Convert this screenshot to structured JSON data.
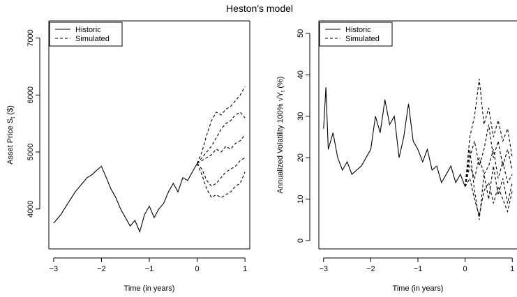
{
  "figure": {
    "title": "Heston's model"
  },
  "chart_data": [
    {
      "type": "line",
      "title": "",
      "xlabel": "Time (in years)",
      "ylabel": "Asset Price S_t ($)",
      "ylabel_main": "Asset Price S",
      "ylabel_sub": "t",
      "ylabel_tail": " ($)",
      "xlim": [
        -3.1,
        1.1
      ],
      "ylim": [
        3300,
        7300
      ],
      "xticks": [
        -3,
        -2,
        -1,
        0,
        1
      ],
      "xtick_labels": [
        "−3",
        "−2",
        "−1",
        "0",
        "1"
      ],
      "yticks": [
        4000,
        5000,
        6000,
        7000
      ],
      "ytick_labels": [
        "4000",
        "5000",
        "6000",
        "7000"
      ],
      "grid": false,
      "legend": {
        "position": "top-left",
        "entries": [
          {
            "label": "Historic",
            "style": "solid"
          },
          {
            "label": "Simulated",
            "style": "dashed"
          }
        ]
      },
      "series": [
        {
          "name": "Historic",
          "style": "solid",
          "x": [
            -3.0,
            -2.85,
            -2.7,
            -2.55,
            -2.4,
            -2.3,
            -2.2,
            -2.1,
            -2.0,
            -1.9,
            -1.8,
            -1.7,
            -1.6,
            -1.5,
            -1.4,
            -1.3,
            -1.2,
            -1.1,
            -1.0,
            -0.9,
            -0.8,
            -0.7,
            -0.6,
            -0.5,
            -0.4,
            -0.3,
            -0.2,
            -0.1,
            0.0
          ],
          "y": [
            3750,
            3900,
            4100,
            4300,
            4450,
            4550,
            4600,
            4680,
            4750,
            4550,
            4350,
            4200,
            4000,
            3850,
            3700,
            3800,
            3600,
            3900,
            4050,
            3850,
            4000,
            4100,
            4300,
            4450,
            4300,
            4550,
            4500,
            4650,
            4800
          ]
        },
        {
          "name": "Simulated path 1",
          "style": "dashed",
          "x": [
            0.0,
            0.1,
            0.2,
            0.3,
            0.4,
            0.5,
            0.6,
            0.7,
            0.8,
            0.9,
            1.0
          ],
          "y": [
            4800,
            5000,
            5300,
            5550,
            5700,
            5650,
            5750,
            5800,
            5900,
            6000,
            6150
          ]
        },
        {
          "name": "Simulated path 2",
          "style": "dashed",
          "x": [
            0.0,
            0.1,
            0.2,
            0.3,
            0.4,
            0.5,
            0.6,
            0.7,
            0.8,
            0.9,
            1.0
          ],
          "y": [
            4800,
            4900,
            5000,
            5100,
            5250,
            5400,
            5500,
            5550,
            5650,
            5700,
            5600
          ]
        },
        {
          "name": "Simulated path 3",
          "style": "dashed",
          "x": [
            0.0,
            0.1,
            0.2,
            0.3,
            0.4,
            0.5,
            0.6,
            0.7,
            0.8,
            0.9,
            1.0
          ],
          "y": [
            4800,
            4850,
            4900,
            4950,
            5050,
            5000,
            5100,
            5050,
            5150,
            5200,
            5300
          ]
        },
        {
          "name": "Simulated path 4",
          "style": "dashed",
          "x": [
            0.0,
            0.1,
            0.2,
            0.3,
            0.4,
            0.5,
            0.6,
            0.7,
            0.8,
            0.9,
            1.0
          ],
          "y": [
            4800,
            4700,
            4500,
            4400,
            4450,
            4550,
            4650,
            4700,
            4750,
            4850,
            4900
          ]
        },
        {
          "name": "Simulated path 5",
          "style": "dashed",
          "x": [
            0.0,
            0.1,
            0.2,
            0.3,
            0.4,
            0.5,
            0.6,
            0.7,
            0.8,
            0.9,
            1.0
          ],
          "y": [
            4800,
            4600,
            4350,
            4200,
            4250,
            4200,
            4250,
            4300,
            4400,
            4450,
            4650
          ]
        }
      ]
    },
    {
      "type": "line",
      "title": "",
      "xlabel": "Time (in years)",
      "ylabel": "Annualized Volatility 100% √Y_t (%)",
      "ylabel_main": "Annualized Volatility 100% √Y",
      "ylabel_sub": "t",
      "ylabel_tail": " (%)",
      "xlim": [
        -3.1,
        1.1
      ],
      "ylim": [
        -2,
        53
      ],
      "xticks": [
        -3,
        -2,
        -1,
        0,
        1
      ],
      "xtick_labels": [
        "−3",
        "−2",
        "−1",
        "0",
        "1"
      ],
      "yticks": [
        0,
        10,
        20,
        30,
        40,
        50
      ],
      "ytick_labels": [
        "0",
        "10",
        "20",
        "30",
        "40",
        "50"
      ],
      "grid": false,
      "legend": {
        "position": "top-left",
        "entries": [
          {
            "label": "Historic",
            "style": "solid"
          },
          {
            "label": "Simulated",
            "style": "dashed"
          }
        ]
      },
      "series": [
        {
          "name": "Historic",
          "style": "solid",
          "x": [
            -3.0,
            -2.95,
            -2.9,
            -2.8,
            -2.7,
            -2.6,
            -2.5,
            -2.4,
            -2.3,
            -2.2,
            -2.1,
            -2.0,
            -1.9,
            -1.8,
            -1.7,
            -1.6,
            -1.5,
            -1.4,
            -1.3,
            -1.2,
            -1.1,
            -1.0,
            -0.9,
            -0.8,
            -0.7,
            -0.6,
            -0.5,
            -0.4,
            -0.3,
            -0.2,
            -0.1,
            0.0
          ],
          "y": [
            27,
            37,
            22,
            26,
            20,
            17,
            19,
            16,
            17,
            18,
            20,
            22,
            30,
            26,
            34,
            28,
            30,
            20,
            25,
            33,
            24,
            22,
            19,
            22,
            17,
            18,
            14,
            16,
            18,
            14,
            16,
            13
          ]
        },
        {
          "name": "Simulated path 1",
          "style": "dashed",
          "x": [
            0.0,
            0.1,
            0.2,
            0.3,
            0.4,
            0.5,
            0.6,
            0.7,
            0.8,
            0.9,
            1.0
          ],
          "y": [
            13,
            25,
            30,
            39,
            28,
            32,
            25,
            29,
            24,
            27,
            20
          ]
        },
        {
          "name": "Simulated path 2",
          "style": "dashed",
          "x": [
            0.0,
            0.1,
            0.2,
            0.3,
            0.4,
            0.5,
            0.6,
            0.7,
            0.8,
            0.9,
            1.0
          ],
          "y": [
            13,
            20,
            24,
            18,
            22,
            28,
            20,
            24,
            18,
            22,
            17
          ]
        },
        {
          "name": "Simulated path 3",
          "style": "dashed",
          "x": [
            0.0,
            0.1,
            0.2,
            0.3,
            0.4,
            0.5,
            0.6,
            0.7,
            0.8,
            0.9,
            1.0
          ],
          "y": [
            13,
            18,
            15,
            20,
            16,
            18,
            22,
            15,
            19,
            14,
            16
          ]
        },
        {
          "name": "Simulated path 4",
          "style": "dashed",
          "x": [
            0.0,
            0.1,
            0.2,
            0.3,
            0.4,
            0.5,
            0.6,
            0.7,
            0.8,
            0.9,
            1.0
          ],
          "y": [
            13,
            15,
            10,
            6,
            12,
            14,
            9,
            13,
            10,
            7,
            12
          ]
        },
        {
          "name": "Simulated path 5",
          "style": "dashed",
          "x": [
            0.0,
            0.1,
            0.2,
            0.3,
            0.4,
            0.5,
            0.6,
            0.7,
            0.8,
            0.9,
            1.0
          ],
          "y": [
            13,
            22,
            12,
            5,
            16,
            10,
            18,
            11,
            15,
            9,
            14
          ]
        }
      ]
    }
  ]
}
